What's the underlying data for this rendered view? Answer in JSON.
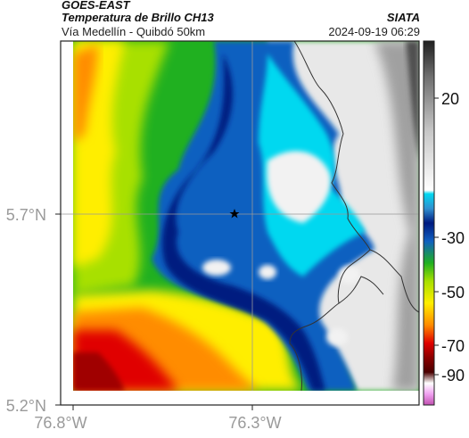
{
  "header": {
    "satellite": "GOES-EAST",
    "product": "Temperatura de Brillo CH13",
    "subtitle": "Vía Medellín - Quibdó 50km",
    "agency": "SIATA",
    "timestamp": "2024-09-19 06:29"
  },
  "axes": {
    "x_ticks": [
      "76.8°W",
      "76.3°W"
    ],
    "y_ticks": [
      "5.7°N",
      "5.2°N"
    ]
  },
  "colorbar": {
    "ticks": [
      "20",
      "-30",
      "-50",
      "-70",
      "-90"
    ],
    "colors": {
      "cold": "#c050b0",
      "deep_red": "#8b0000",
      "red": "#e00000",
      "orange": "#ff8c00",
      "yellow": "#ffee00",
      "green": "#20b020",
      "blue": "#1060c0",
      "navy": "#001a80",
      "cyan": "#00d8f0",
      "light_gray": "#e8e8e8",
      "dark_gray": "#404040"
    }
  },
  "map": {
    "marker": "star",
    "colors": {
      "warm_fill": "#f2f2f2",
      "coast_line": "#333333",
      "grid_line": "#999999"
    }
  }
}
